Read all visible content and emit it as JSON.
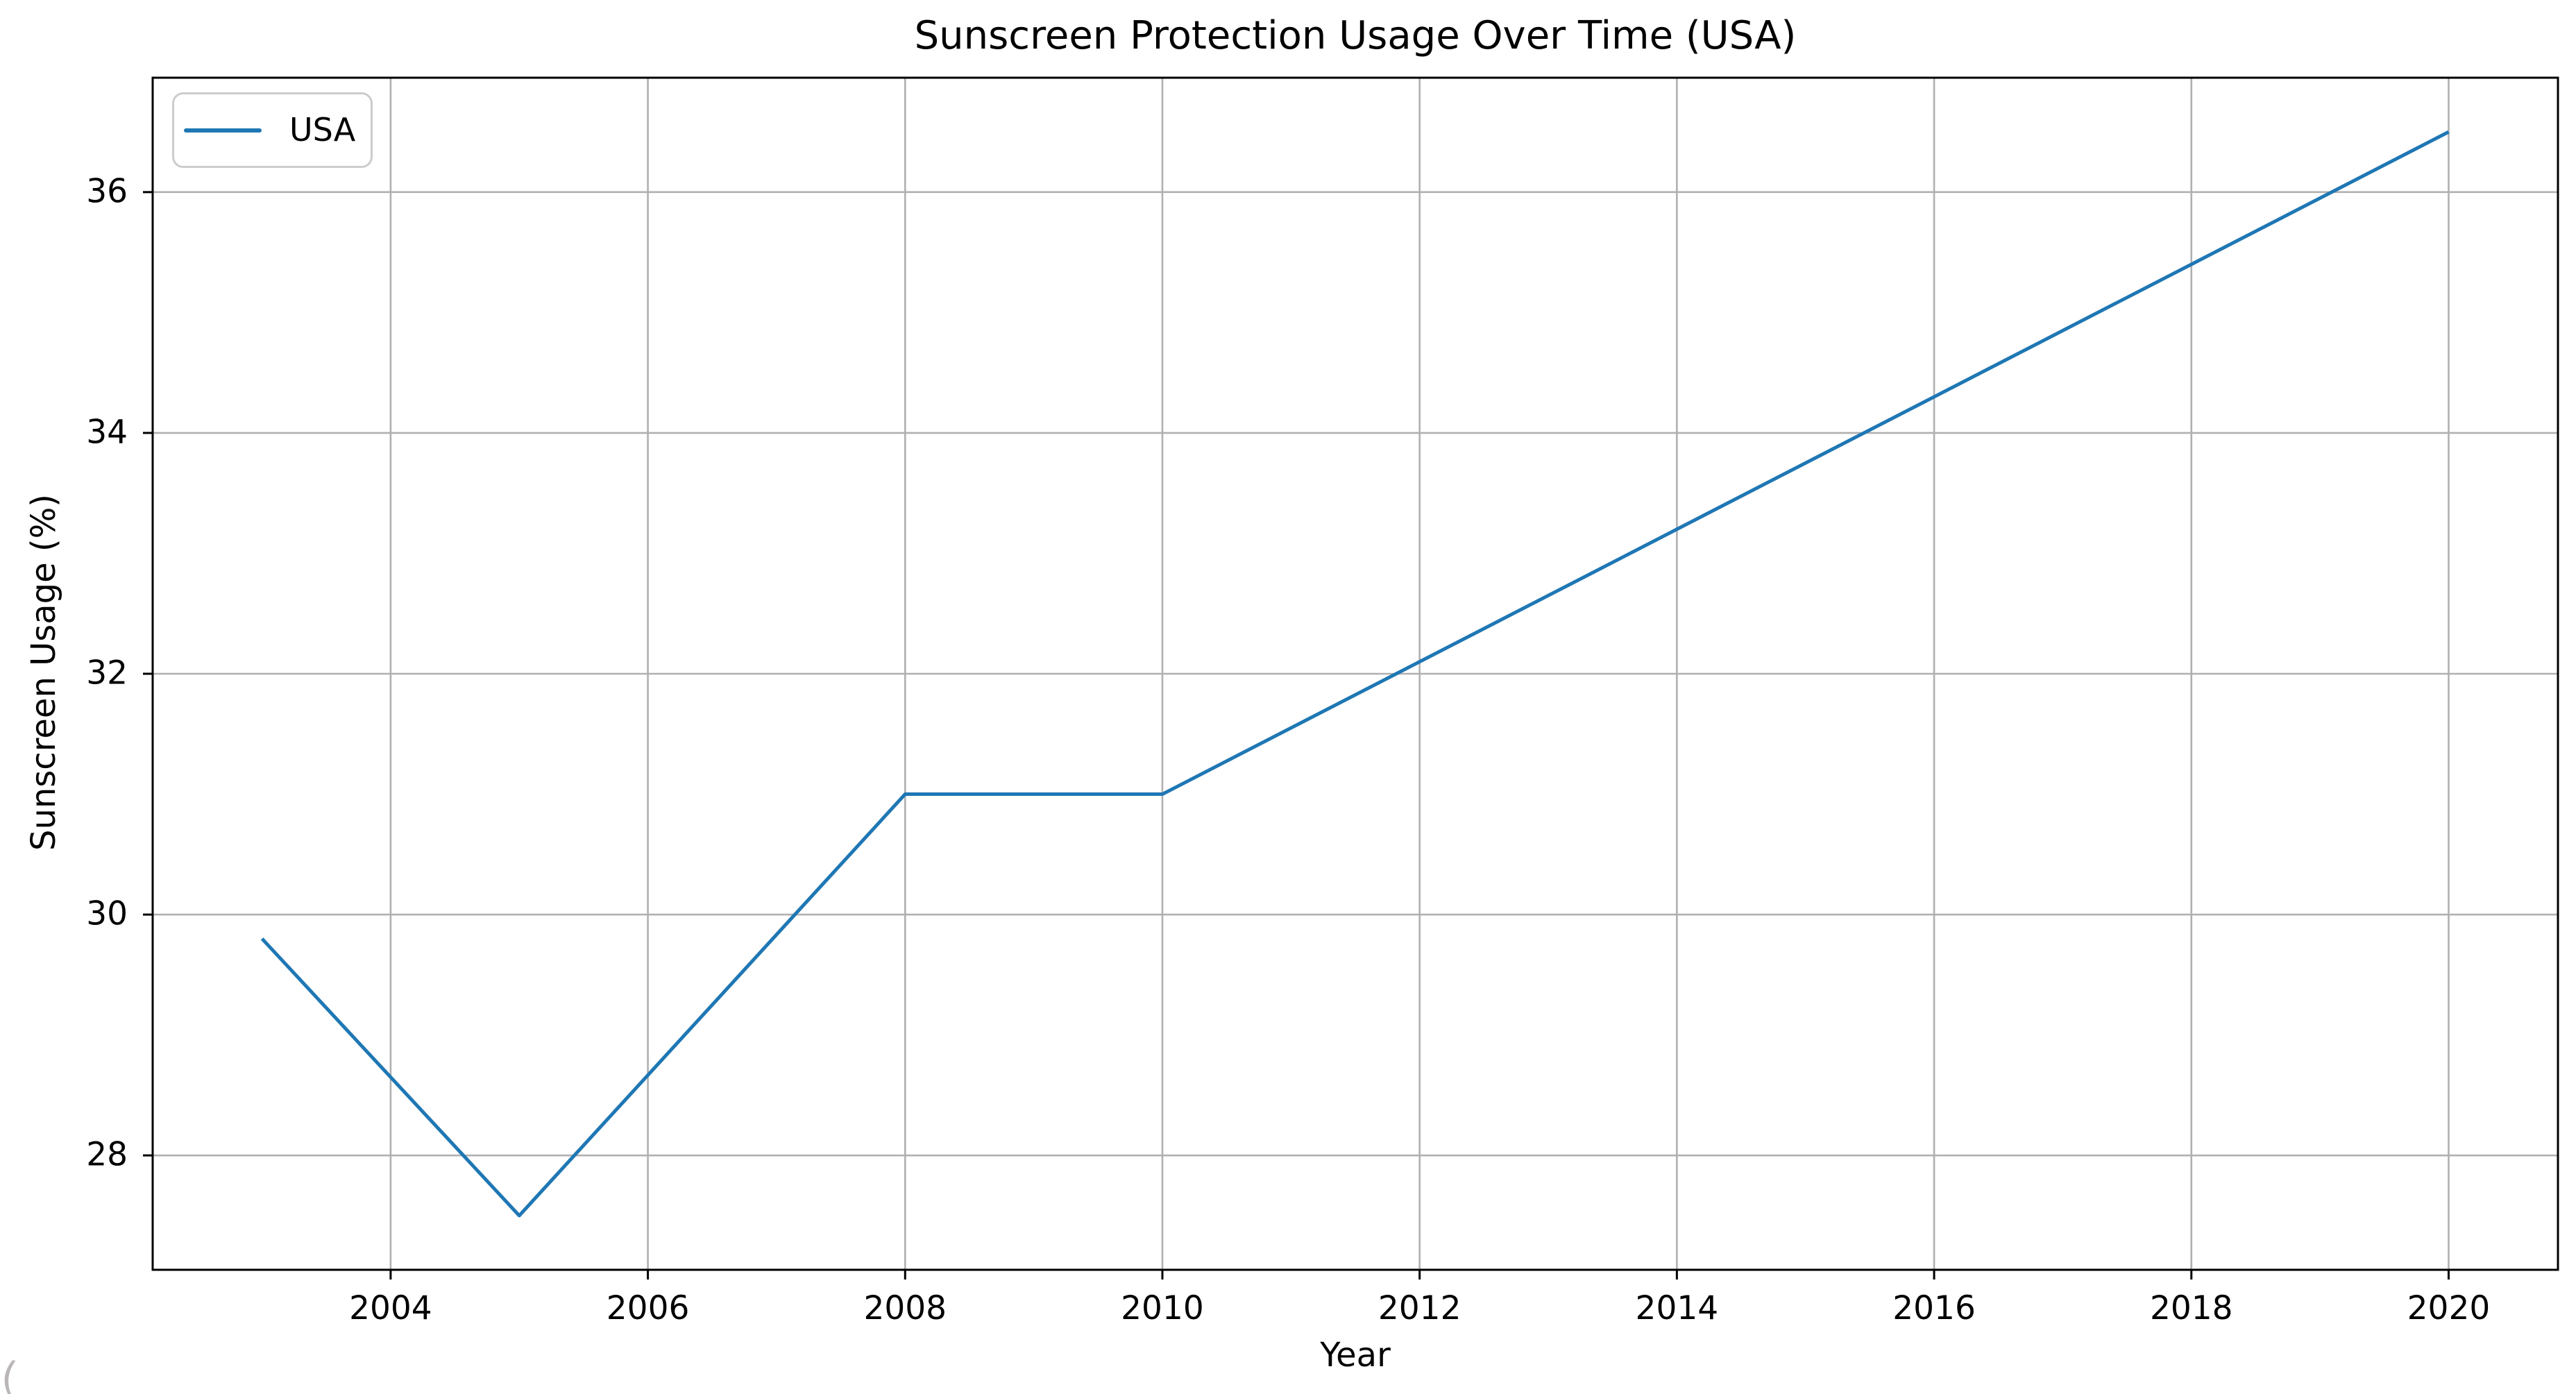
{
  "figure": {
    "corner_artifact": "("
  },
  "chart_data": {
    "type": "line",
    "title": "Sunscreen Protection Usage Over Time (USA)",
    "xlabel": "Year",
    "ylabel": "Sunscreen Usage (%)",
    "xlim": [
      2002.15,
      2020.85
    ],
    "ylim": [
      27.05,
      36.95
    ],
    "xticks": [
      2004,
      2006,
      2008,
      2010,
      2012,
      2014,
      2016,
      2018,
      2020
    ],
    "yticks": [
      28,
      30,
      32,
      34,
      36
    ],
    "grid": true,
    "legend": {
      "position": "upper left",
      "entries": [
        "USA"
      ]
    },
    "series": [
      {
        "name": "USA",
        "color": "#1f77b4",
        "x": [
          2003,
          2005,
          2008,
          2010,
          2020
        ],
        "y": [
          29.8,
          27.5,
          31.0,
          31.0,
          36.5
        ]
      }
    ],
    "styles": {
      "background": "#ffffff",
      "grid_color": "#b0b0b0",
      "spine_color": "#000000",
      "tick_color": "#000000",
      "text_color": "#000000",
      "legend_border": "#cccccc"
    }
  }
}
